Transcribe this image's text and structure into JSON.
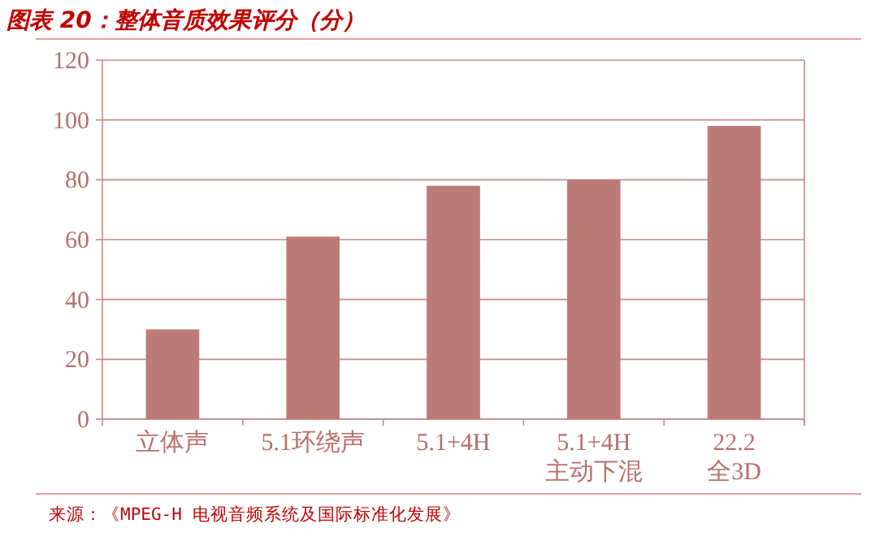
{
  "chart_data": {
    "type": "bar",
    "title": "图表 20：整体音质效果评分（分）",
    "categories": [
      "立体声",
      "5.1环绕声",
      "5.1+4H",
      "5.1+4H\n主动下混",
      "22.2\n全3D"
    ],
    "values": [
      30,
      61,
      78,
      80,
      98
    ],
    "color": "#bd7b78",
    "ylim": [
      0,
      120
    ],
    "yticks": [
      0,
      20,
      40,
      60,
      80,
      100,
      120
    ],
    "grid": "y",
    "annotations": [
      "来源：《MPEG-H 电视音频系统及国际标准化发展》"
    ]
  }
}
